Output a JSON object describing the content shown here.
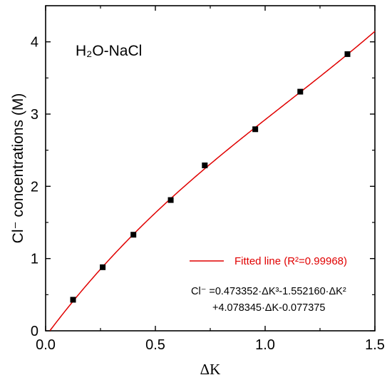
{
  "chart_data": {
    "type": "scatter",
    "xlabel": "ΔK",
    "ylabel": "Cl⁻ concentrations (M)",
    "xlim": [
      0.0,
      1.5
    ],
    "ylim": [
      0,
      4.5
    ],
    "x_ticks": [
      "0.0",
      "0.5",
      "1.0",
      "1.5"
    ],
    "y_ticks": [
      "0",
      "1",
      "2",
      "3",
      "4"
    ],
    "grid": false,
    "legend_position": "bottom-right",
    "annotation": {
      "system": "H₂O-NaCl"
    },
    "series": [
      {
        "name": "",
        "kind": "points",
        "color": "#000000",
        "x": [
          0.125,
          0.26,
          0.4,
          0.57,
          0.725,
          0.955,
          1.16,
          1.375
        ],
        "y": [
          0.43,
          0.88,
          1.33,
          1.81,
          2.29,
          2.79,
          3.31,
          3.83
        ]
      },
      {
        "name": "Fitted line (R²=0.99968)",
        "kind": "line",
        "color": "#e00000",
        "coefficients": {
          "a3": 0.473352,
          "a2": -1.55216,
          "a1": 4.078345,
          "a0": -0.077375
        },
        "x_range": [
          0.02,
          1.5
        ]
      }
    ],
    "equation_lines": [
      "Cl⁻ =0.473352·ΔK³-1.552160·ΔK²",
      "+4.078345·ΔK-0.077375"
    ]
  }
}
